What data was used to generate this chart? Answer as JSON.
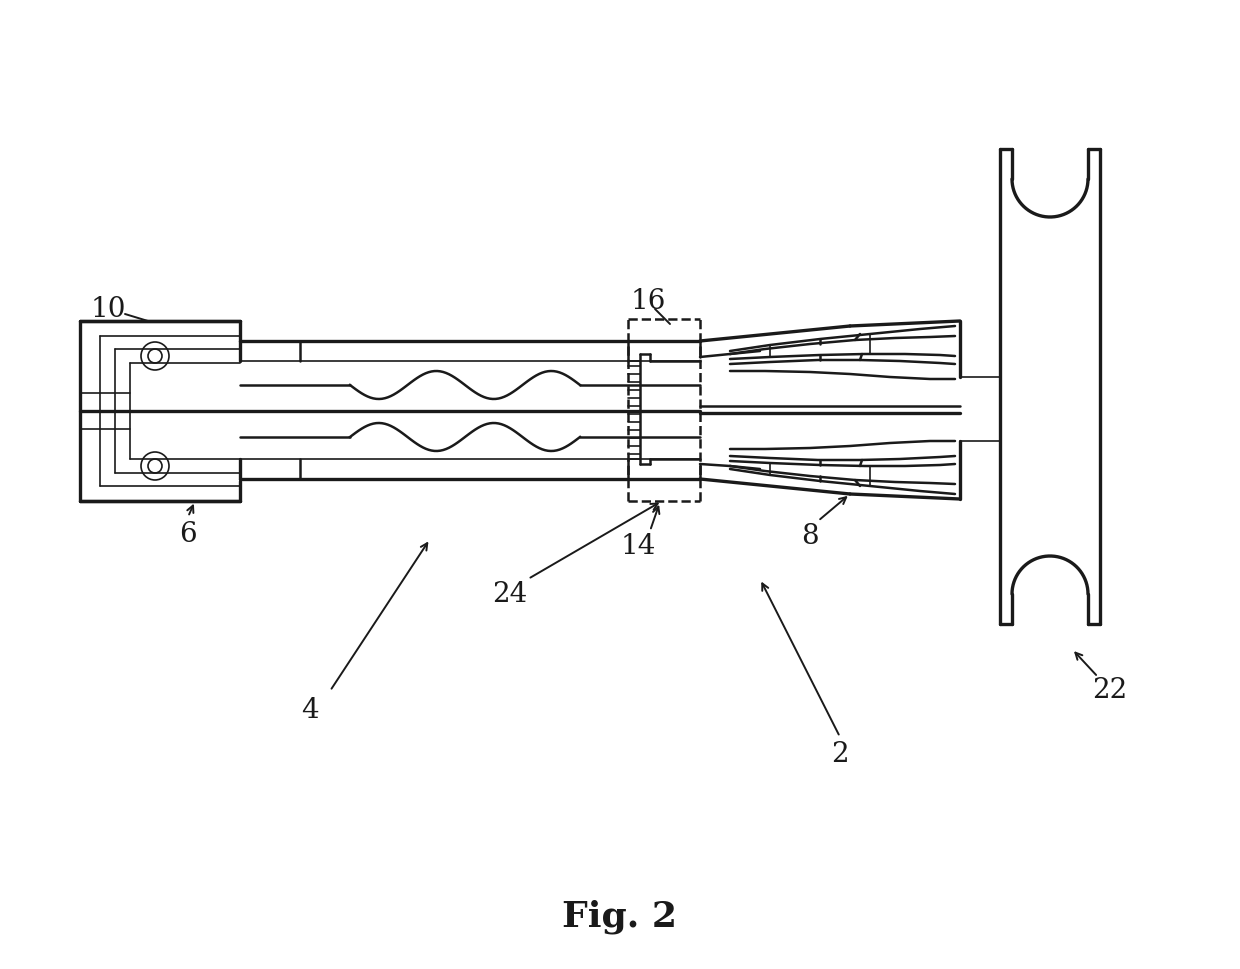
{
  "title": "Fig. 2",
  "title_fontsize": 26,
  "title_fontweight": "bold",
  "background_color": "#ffffff",
  "line_color": "#1a1a1a",
  "lw_thin": 1.2,
  "lw_med": 1.8,
  "lw_thick": 2.4,
  "label_fontsize": 20,
  "figsize": [
    12.4,
    9.69
  ],
  "dpi": 100
}
